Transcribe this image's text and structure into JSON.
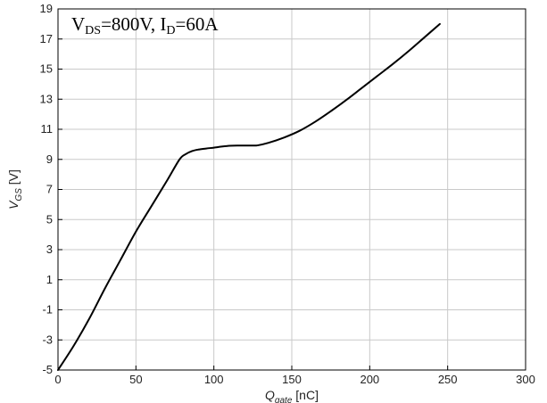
{
  "chart_data": {
    "type": "line",
    "title": "",
    "annotation": {
      "parts": [
        {
          "text": "V",
          "sub": false
        },
        {
          "text": "DS",
          "sub": true
        },
        {
          "text": "=800V, I",
          "sub": false
        },
        {
          "text": "D",
          "sub": true
        },
        {
          "text": "=60A",
          "sub": false
        }
      ],
      "position": "top-left"
    },
    "xlabel": {
      "main": "Q",
      "sub": "gate",
      "unit": " [nC]"
    },
    "ylabel": {
      "main": "V",
      "sub": "GS",
      "unit": " [V]"
    },
    "xlim": [
      0,
      300
    ],
    "ylim": [
      -5,
      19
    ],
    "xticks": [
      0,
      50,
      100,
      150,
      200,
      250,
      300
    ],
    "yticks": [
      -5,
      -3,
      -1,
      1,
      3,
      5,
      7,
      9,
      11,
      13,
      15,
      17,
      19
    ],
    "grid": true,
    "series": [
      {
        "color": "#000000",
        "x": [
          0,
          10,
          20,
          30,
          40,
          50,
          60,
          70,
          78,
          82,
          86,
          90,
          95,
          100,
          105,
          110,
          115,
          120,
          125,
          128,
          135,
          145,
          155,
          165,
          175,
          185,
          195,
          205,
          215,
          225,
          235,
          245
        ],
        "y": [
          -5,
          -3.4,
          -1.6,
          0.4,
          2.3,
          4.2,
          5.9,
          7.6,
          9.0,
          9.35,
          9.55,
          9.65,
          9.72,
          9.78,
          9.85,
          9.9,
          9.92,
          9.92,
          9.92,
          9.93,
          10.1,
          10.45,
          10.9,
          11.5,
          12.2,
          12.95,
          13.75,
          14.55,
          15.35,
          16.2,
          17.1,
          18.0
        ]
      }
    ]
  }
}
